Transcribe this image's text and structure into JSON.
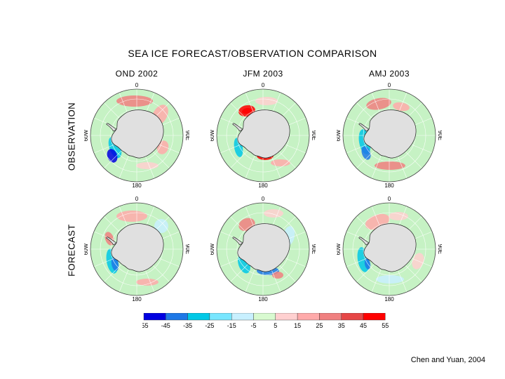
{
  "title": "SEA ICE FORECAST/OBSERVATION COMPARISON",
  "columns": [
    "OND 2002",
    "JFM 2003",
    "AMJ 2003"
  ],
  "rows": [
    "OBSERVATION",
    "FORECAST"
  ],
  "longitude_labels": {
    "top": "0",
    "left": "60W",
    "right": "90E",
    "bottom": "180"
  },
  "colorbar": {
    "labels": [
      "-55",
      "-45",
      "-35",
      "-25",
      "-15",
      "-5",
      "5",
      "15",
      "25",
      "35",
      "45",
      "55"
    ],
    "colors": [
      "#0000e0",
      "#1e78e6",
      "#00c8e6",
      "#78e6ff",
      "#c8f0ff",
      "#d8fad0",
      "#ffd0d0",
      "#ffaaaa",
      "#f08080",
      "#e64646",
      "#ff0000"
    ]
  },
  "credit": "Chen and Yuan, 2004",
  "colors": {
    "ocean": "#c6f2c4",
    "land": "#e0e0e0",
    "grid": "#ffffff"
  }
}
